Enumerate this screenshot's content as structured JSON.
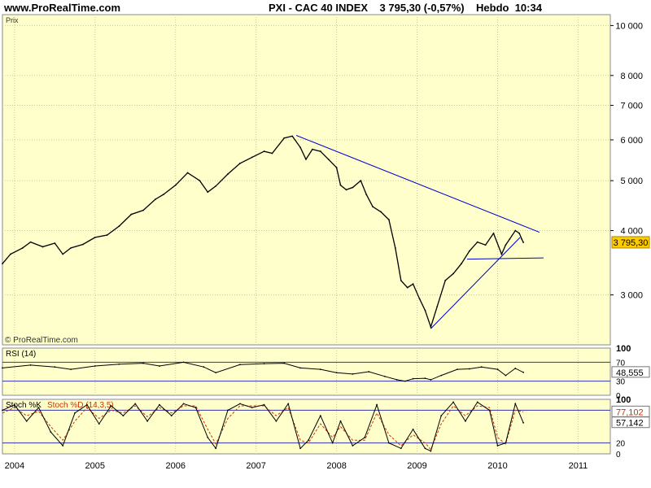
{
  "header": {
    "site": "www.ProRealTime.com",
    "title": "PXI - CAC 40 INDEX    3 795,30 (-0,57%)    Hebdo  10:34"
  },
  "colors": {
    "panel_bg": "#ffffcc",
    "price_line": "#000000",
    "trendline": "#0000cc",
    "rsi_line": "#000000",
    "stoch_k": "#000000",
    "stoch_d": "#cc3300",
    "last_label_bg": "#ffcc00"
  },
  "panels": {
    "price": {
      "label": "Prix",
      "watermark": "© ProRealTime.com"
    },
    "rsi": {
      "label": "RSI (14)",
      "value_label": "48,555"
    },
    "stoch": {
      "label_k": "Stoch %K",
      "label_d": "Stoch %D (14,3,5)",
      "value_k_label": "57,142",
      "value_d_label": "77,102"
    }
  },
  "chart_data": [
    {
      "type": "line",
      "panel": "price",
      "title": "PXI - CAC 40 INDEX",
      "yscale": "log",
      "ylim": [
        2400,
        10500
      ],
      "xlim": [
        2003.85,
        2011.4
      ],
      "yticks": [
        3000,
        4000,
        5000,
        6000,
        7000,
        8000,
        10000
      ],
      "ytick_labels": [
        "3 000",
        "4 000",
        "5 000",
        "6 000",
        "7 000",
        "8 000",
        "10 000"
      ],
      "xticks": [
        2004,
        2005,
        2006,
        2007,
        2008,
        2009,
        2010,
        2011
      ],
      "xtick_labels": [
        "2004",
        "2005",
        "2006",
        "2007",
        "2008",
        "2009",
        "2010",
        "2011"
      ],
      "last_value": 3795.3,
      "last_label": "3 795,30",
      "series": [
        {
          "x": [
            2003.85,
            2003.95,
            2004.1,
            2004.2,
            2004.35,
            2004.5,
            2004.6,
            2004.7,
            2004.85,
            2005.0,
            2005.15,
            2005.3,
            2005.45,
            2005.6,
            2005.75,
            2005.85,
            2006.0,
            2006.15,
            2006.3,
            2006.4,
            2006.5,
            2006.65,
            2006.8,
            2006.95,
            2007.1,
            2007.2,
            2007.35,
            2007.45,
            2007.55,
            2007.62,
            2007.7,
            2007.8,
            2007.9,
            2008.0,
            2008.05,
            2008.12,
            2008.2,
            2008.3,
            2008.37,
            2008.45,
            2008.55,
            2008.65,
            2008.73,
            2008.8,
            2008.88,
            2008.95,
            2009.03,
            2009.1,
            2009.17,
            2009.25,
            2009.35,
            2009.45,
            2009.55,
            2009.65,
            2009.75,
            2009.85,
            2009.95,
            2010.05,
            2010.1,
            2010.15,
            2010.22,
            2010.27,
            2010.3,
            2010.32
          ],
          "values": [
            3450,
            3600,
            3700,
            3800,
            3720,
            3780,
            3600,
            3700,
            3760,
            3880,
            3920,
            4080,
            4300,
            4380,
            4600,
            4700,
            4900,
            5180,
            5000,
            4750,
            4880,
            5150,
            5400,
            5550,
            5700,
            5650,
            6050,
            6100,
            5800,
            5500,
            5750,
            5700,
            5500,
            5300,
            4900,
            4800,
            4850,
            5000,
            4700,
            4450,
            4350,
            4200,
            3700,
            3200,
            3100,
            3150,
            2950,
            2800,
            2600,
            2850,
            3200,
            3300,
            3450,
            3650,
            3800,
            3750,
            3950,
            3600,
            3750,
            3850,
            4000,
            3950,
            3850,
            3795
          ]
        }
      ],
      "trendlines": [
        {
          "x": [
            2007.5,
            2010.52
          ],
          "y": [
            6120,
            3970
          ]
        },
        {
          "x": [
            2009.17,
            2010.28
          ],
          "y": [
            2580,
            3880
          ]
        },
        {
          "x": [
            2009.62,
            2010.57
          ],
          "y": [
            3520,
            3540
          ]
        }
      ]
    },
    {
      "type": "line",
      "panel": "rsi",
      "title": "RSI (14)",
      "ylim": [
        0,
        100
      ],
      "yticks": [
        0,
        30,
        70,
        100
      ],
      "ytick_labels": [
        "0",
        "30",
        "70",
        "100"
      ],
      "reference_levels": [
        30,
        70
      ],
      "last_value": 48.555,
      "series": [
        {
          "x": [
            2003.85,
            2004.2,
            2004.5,
            2004.7,
            2005.0,
            2005.3,
            2005.6,
            2005.8,
            2006.1,
            2006.35,
            2006.5,
            2006.8,
            2007.1,
            2007.35,
            2007.55,
            2007.8,
            2008.0,
            2008.2,
            2008.4,
            2008.6,
            2008.75,
            2008.85,
            2008.95,
            2009.1,
            2009.17,
            2009.3,
            2009.5,
            2009.65,
            2009.8,
            2010.0,
            2010.1,
            2010.22,
            2010.32
          ],
          "values": [
            58,
            64,
            60,
            55,
            62,
            66,
            68,
            62,
            70,
            60,
            48,
            65,
            67,
            68,
            58,
            55,
            48,
            45,
            50,
            40,
            33,
            30,
            35,
            36,
            33,
            42,
            55,
            56,
            60,
            55,
            42,
            57,
            48.6
          ]
        }
      ]
    },
    {
      "type": "line",
      "panel": "stoch",
      "title": "Stoch %K / Stoch %D (14,3,5)",
      "ylim": [
        0,
        100
      ],
      "yticks": [
        0,
        20,
        80,
        100
      ],
      "ytick_labels": [
        "0",
        "20",
        "80",
        "100"
      ],
      "reference_levels": [
        20,
        80
      ],
      "last_value_k": 57.142,
      "last_value_d": 77.102,
      "series": [
        {
          "name": "Stoch %K",
          "x": [
            2003.85,
            2004.0,
            2004.15,
            2004.3,
            2004.45,
            2004.6,
            2004.75,
            2004.9,
            2005.05,
            2005.2,
            2005.35,
            2005.5,
            2005.65,
            2005.8,
            2005.95,
            2006.1,
            2006.25,
            2006.4,
            2006.5,
            2006.65,
            2006.8,
            2006.95,
            2007.1,
            2007.25,
            2007.4,
            2007.55,
            2007.65,
            2007.8,
            2007.95,
            2008.05,
            2008.2,
            2008.35,
            2008.5,
            2008.65,
            2008.8,
            2008.95,
            2009.1,
            2009.17,
            2009.3,
            2009.45,
            2009.6,
            2009.75,
            2009.9,
            2010.0,
            2010.1,
            2010.22,
            2010.32
          ],
          "values": [
            80,
            90,
            60,
            85,
            40,
            15,
            75,
            90,
            55,
            88,
            70,
            92,
            60,
            90,
            70,
            92,
            85,
            30,
            10,
            80,
            92,
            85,
            90,
            60,
            92,
            10,
            25,
            70,
            20,
            60,
            15,
            30,
            90,
            20,
            10,
            45,
            10,
            5,
            70,
            95,
            60,
            95,
            80,
            15,
            20,
            92,
            57
          ]
        },
        {
          "name": "Stoch %D",
          "x": [
            2003.85,
            2004.0,
            2004.15,
            2004.3,
            2004.45,
            2004.6,
            2004.75,
            2004.9,
            2005.05,
            2005.2,
            2005.35,
            2005.5,
            2005.65,
            2005.8,
            2005.95,
            2006.1,
            2006.25,
            2006.4,
            2006.5,
            2006.65,
            2006.8,
            2006.95,
            2007.1,
            2007.25,
            2007.4,
            2007.55,
            2007.65,
            2007.8,
            2007.95,
            2008.05,
            2008.2,
            2008.35,
            2008.5,
            2008.65,
            2008.8,
            2008.95,
            2009.1,
            2009.17,
            2009.3,
            2009.45,
            2009.6,
            2009.75,
            2009.9,
            2010.0,
            2010.1,
            2010.22,
            2010.32
          ],
          "values": [
            75,
            85,
            70,
            78,
            50,
            25,
            60,
            85,
            65,
            80,
            75,
            88,
            68,
            85,
            75,
            88,
            88,
            45,
            18,
            65,
            88,
            88,
            88,
            70,
            85,
            25,
            20,
            55,
            30,
            50,
            25,
            25,
            75,
            35,
            15,
            35,
            20,
            8,
            55,
            88,
            70,
            88,
            85,
            30,
            18,
            80,
            77
          ]
        }
      ]
    }
  ]
}
